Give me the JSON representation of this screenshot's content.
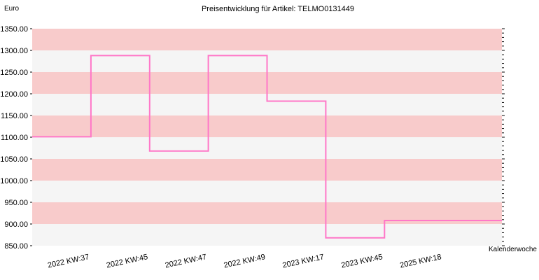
{
  "chart_data": {
    "type": "line",
    "title": "Preisentwicklung für Artikel: TELMO0131449",
    "ylabel": "Euro",
    "xlabel": "Kalenderwoche",
    "step": true,
    "ylim": [
      850,
      1350
    ],
    "yticks": [
      850,
      900,
      950,
      1000,
      1050,
      1100,
      1150,
      1200,
      1250,
      1300,
      1350
    ],
    "ytick_labels": [
      "850.00",
      "900.00",
      "950.00",
      "1000.00",
      "1050.00",
      "1100.00",
      "1150.00",
      "1200.00",
      "1250.00",
      "1300.00",
      "1350.00"
    ],
    "categories": [
      "2022 KW:37",
      "2022 KW:45",
      "2022 KW:47",
      "2022 KW:49",
      "2023 KW:17",
      "2023 KW:45",
      "2025 KW:18"
    ],
    "series": [
      {
        "values": [
          1101,
          1288,
          1068,
          1288,
          1183,
          868,
          908
        ]
      }
    ],
    "colors": {
      "line": "#ff77c8",
      "band_dark": "#f8cbcb",
      "band_light": "#f5f5f5"
    }
  }
}
